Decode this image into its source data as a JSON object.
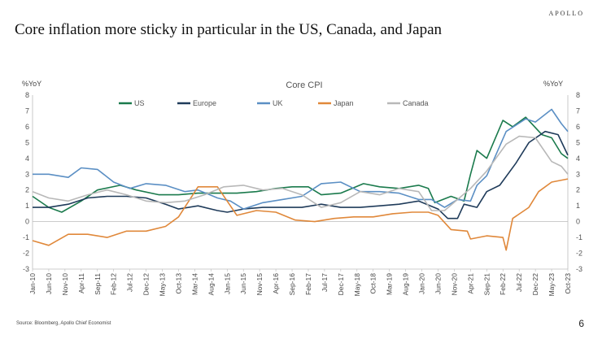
{
  "brand": "APOLLO",
  "slide_title": "Core inflation more sticky in particular in the US, Canada, and Japan",
  "source": "Source: Bloomberg, Apollo Chief Economist",
  "page_number": "6",
  "chart_data": {
    "type": "line",
    "title": "Core CPI",
    "ylabel_left": "%YoY",
    "ylabel_right": "%YoY",
    "ylim": [
      -3,
      8
    ],
    "yticks": [
      -3,
      -2,
      -1,
      0,
      1,
      2,
      3,
      4,
      5,
      6,
      7,
      8
    ],
    "xlim": [
      "2010-01",
      "2023-10"
    ],
    "xticks": [
      "Jan-10",
      "Jun-10",
      "Nov-10",
      "Apr-11",
      "Sep-11",
      "Feb-12",
      "Jul-12",
      "Dec-12",
      "May-13",
      "Oct-13",
      "Mar-14",
      "Aug-14",
      "Jan-15",
      "Jun-15",
      "Nov-15",
      "Apr-16",
      "Sep-16",
      "Feb-17",
      "Jul-17",
      "Dec-17",
      "May-18",
      "Oct-18",
      "Mar-19",
      "Aug-19",
      "Jan-20",
      "Jun-20",
      "Nov-20",
      "Apr-21",
      "Sep-21",
      "Feb-22",
      "Jul-22",
      "Dec-22",
      "May-23",
      "Oct-23"
    ],
    "grid": false,
    "legend_position": "top",
    "series": [
      {
        "name": "US",
        "color": "#1a7a4c",
        "points": [
          [
            "2010-01",
            1.6
          ],
          [
            "2010-06",
            0.9
          ],
          [
            "2010-10",
            0.6
          ],
          [
            "2011-04",
            1.3
          ],
          [
            "2011-09",
            2.0
          ],
          [
            "2012-04",
            2.3
          ],
          [
            "2012-09",
            2.0
          ],
          [
            "2013-04",
            1.7
          ],
          [
            "2013-10",
            1.7
          ],
          [
            "2014-04",
            1.8
          ],
          [
            "2014-10",
            1.8
          ],
          [
            "2015-04",
            1.8
          ],
          [
            "2015-10",
            1.9
          ],
          [
            "2016-04",
            2.1
          ],
          [
            "2016-09",
            2.2
          ],
          [
            "2017-02",
            2.2
          ],
          [
            "2017-06",
            1.7
          ],
          [
            "2017-12",
            1.8
          ],
          [
            "2018-07",
            2.4
          ],
          [
            "2018-12",
            2.2
          ],
          [
            "2019-06",
            2.1
          ],
          [
            "2019-12",
            2.3
          ],
          [
            "2020-03",
            2.1
          ],
          [
            "2020-05",
            1.2
          ],
          [
            "2020-10",
            1.6
          ],
          [
            "2021-02",
            1.3
          ],
          [
            "2021-04",
            3.0
          ],
          [
            "2021-06",
            4.5
          ],
          [
            "2021-09",
            4.0
          ],
          [
            "2022-02",
            6.4
          ],
          [
            "2022-05",
            6.0
          ],
          [
            "2022-09",
            6.6
          ],
          [
            "2023-02",
            5.5
          ],
          [
            "2023-05",
            5.3
          ],
          [
            "2023-08",
            4.3
          ],
          [
            "2023-10",
            4.0
          ]
        ]
      },
      {
        "name": "Europe",
        "color": "#1f3b5a",
        "points": [
          [
            "2010-01",
            0.9
          ],
          [
            "2010-06",
            0.9
          ],
          [
            "2010-12",
            1.1
          ],
          [
            "2011-06",
            1.5
          ],
          [
            "2011-12",
            1.6
          ],
          [
            "2012-06",
            1.6
          ],
          [
            "2012-12",
            1.5
          ],
          [
            "2013-06",
            1.1
          ],
          [
            "2013-10",
            0.8
          ],
          [
            "2014-04",
            1.0
          ],
          [
            "2014-10",
            0.7
          ],
          [
            "2015-01",
            0.6
          ],
          [
            "2015-06",
            0.8
          ],
          [
            "2015-12",
            0.9
          ],
          [
            "2016-06",
            0.9
          ],
          [
            "2016-12",
            0.9
          ],
          [
            "2017-06",
            1.1
          ],
          [
            "2017-12",
            0.9
          ],
          [
            "2018-06",
            0.9
          ],
          [
            "2018-12",
            1.0
          ],
          [
            "2019-06",
            1.1
          ],
          [
            "2019-12",
            1.3
          ],
          [
            "2020-06",
            0.8
          ],
          [
            "2020-09",
            0.2
          ],
          [
            "2020-12",
            0.2
          ],
          [
            "2021-02",
            1.1
          ],
          [
            "2021-06",
            0.9
          ],
          [
            "2021-09",
            1.9
          ],
          [
            "2022-01",
            2.3
          ],
          [
            "2022-06",
            3.7
          ],
          [
            "2022-10",
            5.0
          ],
          [
            "2023-03",
            5.7
          ],
          [
            "2023-07",
            5.5
          ],
          [
            "2023-10",
            4.2
          ]
        ]
      },
      {
        "name": "UK",
        "color": "#5b8fc4",
        "points": [
          [
            "2010-01",
            3.0
          ],
          [
            "2010-06",
            3.0
          ],
          [
            "2010-12",
            2.8
          ],
          [
            "2011-04",
            3.4
          ],
          [
            "2011-09",
            3.3
          ],
          [
            "2012-02",
            2.5
          ],
          [
            "2012-07",
            2.1
          ],
          [
            "2012-12",
            2.4
          ],
          [
            "2013-06",
            2.3
          ],
          [
            "2013-12",
            1.9
          ],
          [
            "2014-04",
            2.0
          ],
          [
            "2014-10",
            1.5
          ],
          [
            "2015-02",
            1.3
          ],
          [
            "2015-06",
            0.8
          ],
          [
            "2015-12",
            1.2
          ],
          [
            "2016-06",
            1.4
          ],
          [
            "2016-12",
            1.6
          ],
          [
            "2017-06",
            2.4
          ],
          [
            "2017-12",
            2.5
          ],
          [
            "2018-06",
            1.9
          ],
          [
            "2018-12",
            1.9
          ],
          [
            "2019-06",
            1.8
          ],
          [
            "2019-12",
            1.4
          ],
          [
            "2020-04",
            1.4
          ],
          [
            "2020-08",
            0.9
          ],
          [
            "2020-12",
            1.4
          ],
          [
            "2021-04",
            1.3
          ],
          [
            "2021-06",
            2.3
          ],
          [
            "2021-09",
            2.9
          ],
          [
            "2022-03",
            5.7
          ],
          [
            "2022-09",
            6.5
          ],
          [
            "2022-12",
            6.3
          ],
          [
            "2023-05",
            7.1
          ],
          [
            "2023-08",
            6.2
          ],
          [
            "2023-10",
            5.7
          ]
        ]
      },
      {
        "name": "Japan",
        "color": "#e0883a",
        "points": [
          [
            "2010-01",
            -1.2
          ],
          [
            "2010-06",
            -1.5
          ],
          [
            "2010-12",
            -0.8
          ],
          [
            "2011-06",
            -0.8
          ],
          [
            "2011-12",
            -1.0
          ],
          [
            "2012-06",
            -0.6
          ],
          [
            "2012-12",
            -0.6
          ],
          [
            "2013-06",
            -0.3
          ],
          [
            "2013-10",
            0.3
          ],
          [
            "2014-04",
            2.2
          ],
          [
            "2014-10",
            2.2
          ],
          [
            "2015-04",
            0.4
          ],
          [
            "2015-10",
            0.7
          ],
          [
            "2016-04",
            0.6
          ],
          [
            "2016-10",
            0.1
          ],
          [
            "2017-04",
            0.0
          ],
          [
            "2017-10",
            0.2
          ],
          [
            "2018-04",
            0.3
          ],
          [
            "2018-10",
            0.3
          ],
          [
            "2019-04",
            0.5
          ],
          [
            "2019-10",
            0.6
          ],
          [
            "2020-03",
            0.6
          ],
          [
            "2020-06",
            0.4
          ],
          [
            "2020-10",
            -0.5
          ],
          [
            "2021-03",
            -0.6
          ],
          [
            "2021-04",
            -1.1
          ],
          [
            "2021-09",
            -0.9
          ],
          [
            "2022-02",
            -1.0
          ],
          [
            "2022-03",
            -1.8
          ],
          [
            "2022-05",
            0.2
          ],
          [
            "2022-10",
            0.9
          ],
          [
            "2023-01",
            1.9
          ],
          [
            "2023-05",
            2.5
          ],
          [
            "2023-10",
            2.7
          ]
        ]
      },
      {
        "name": "Canada",
        "color": "#b8b8b8",
        "points": [
          [
            "2010-01",
            1.9
          ],
          [
            "2010-06",
            1.5
          ],
          [
            "2010-12",
            1.3
          ],
          [
            "2011-06",
            1.7
          ],
          [
            "2011-12",
            2.0
          ],
          [
            "2012-06",
            1.7
          ],
          [
            "2012-12",
            1.3
          ],
          [
            "2013-06",
            1.2
          ],
          [
            "2013-12",
            1.3
          ],
          [
            "2014-06",
            1.7
          ],
          [
            "2014-12",
            2.2
          ],
          [
            "2015-06",
            2.3
          ],
          [
            "2015-12",
            2.0
          ],
          [
            "2016-06",
            2.1
          ],
          [
            "2016-12",
            1.7
          ],
          [
            "2017-06",
            0.9
          ],
          [
            "2017-12",
            1.2
          ],
          [
            "2018-06",
            1.9
          ],
          [
            "2018-12",
            1.7
          ],
          [
            "2019-06",
            2.1
          ],
          [
            "2019-12",
            1.9
          ],
          [
            "2020-04",
            0.7
          ],
          [
            "2020-08",
            0.7
          ],
          [
            "2020-12",
            1.4
          ],
          [
            "2021-04",
            2.1
          ],
          [
            "2021-09",
            3.2
          ],
          [
            "2022-03",
            4.9
          ],
          [
            "2022-07",
            5.4
          ],
          [
            "2022-12",
            5.3
          ],
          [
            "2023-05",
            3.8
          ],
          [
            "2023-08",
            3.5
          ],
          [
            "2023-10",
            3.0
          ]
        ]
      }
    ]
  }
}
